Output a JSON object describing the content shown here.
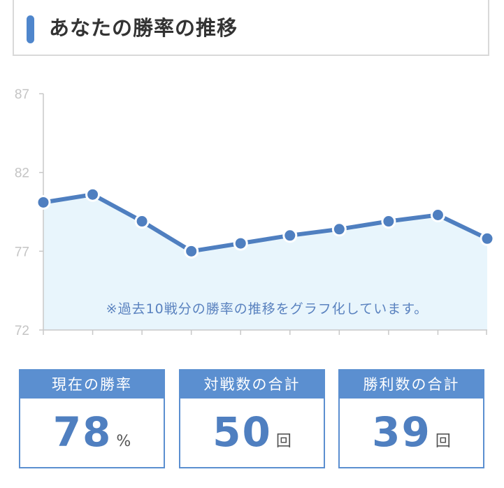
{
  "header": {
    "title": "あなたの勝率の推移"
  },
  "chart_data": {
    "type": "area",
    "x": [
      1,
      2,
      3,
      4,
      5,
      6,
      7,
      8,
      9,
      10
    ],
    "values": [
      80.1,
      80.6,
      78.9,
      77.0,
      77.5,
      78.0,
      78.4,
      78.9,
      79.3,
      77.8
    ],
    "ylim": [
      72,
      87
    ],
    "yticks": [
      "87",
      "82",
      "77",
      "72"
    ],
    "note": "※過去10戦分の勝率の推移をグラフ化しています。",
    "line_color": "#4f7fc0",
    "fill_color": "#e8f5fc",
    "grid": false
  },
  "stats": [
    {
      "label": "現在の勝率",
      "value": "78",
      "unit": "%"
    },
    {
      "label": "対戦数の合計",
      "value": "50",
      "unit": "回"
    },
    {
      "label": "勝利数の合計",
      "value": "39",
      "unit": "回"
    }
  ]
}
